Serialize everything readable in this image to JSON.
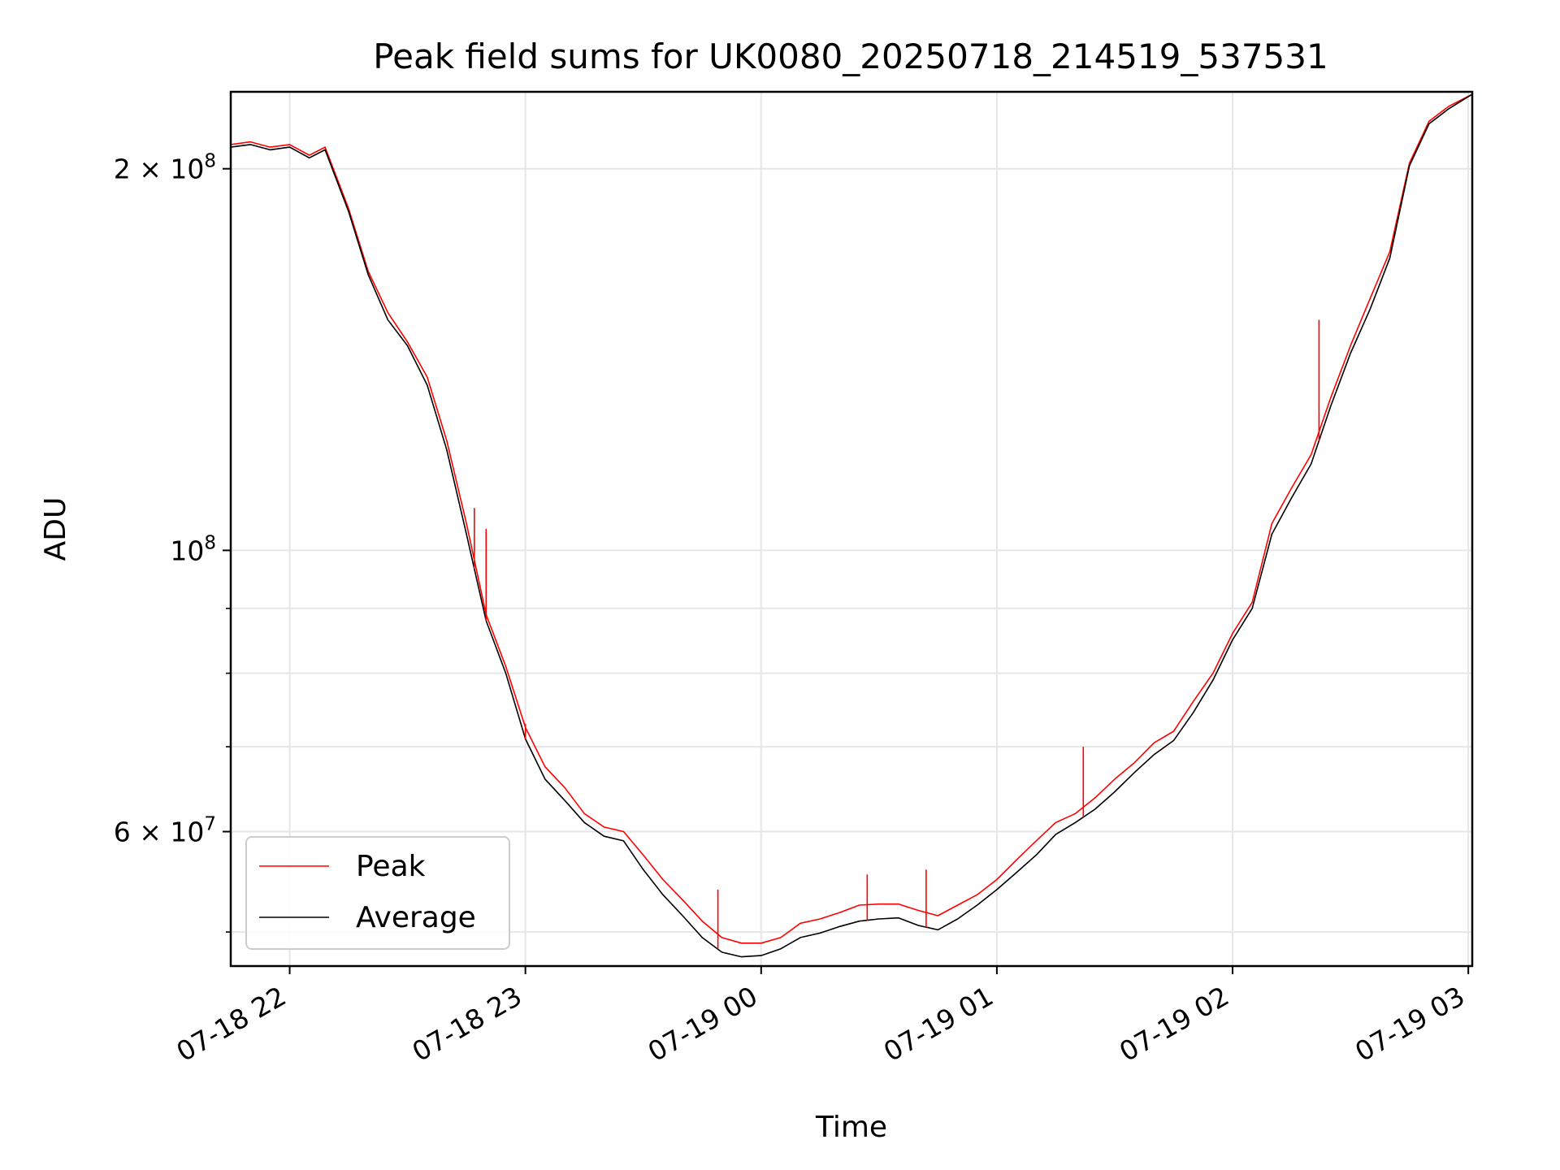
{
  "chart_data": {
    "type": "line",
    "title": "Peak field sums for UK0080_20250718_214519_537531",
    "xlabel": "Time",
    "ylabel": "ADU",
    "yscale": "log",
    "xlim": [
      "2025-07-18 21:45",
      "2025-07-19 03:01"
    ],
    "ylim": [
      47000000,
      230000000
    ],
    "grid": true,
    "legend_position": "lower-left",
    "x_ticks": [
      {
        "time": "2025-07-18 22:00",
        "label": "07-18 22"
      },
      {
        "time": "2025-07-18 23:00",
        "label": "07-18 23"
      },
      {
        "time": "2025-07-19 00:00",
        "label": "07-19 00"
      },
      {
        "time": "2025-07-19 01:00",
        "label": "07-19 01"
      },
      {
        "time": "2025-07-19 02:00",
        "label": "07-19 02"
      },
      {
        "time": "2025-07-19 03:00",
        "label": "07-19 03"
      }
    ],
    "y_ticks": [
      {
        "value": 200000000,
        "label_main": "2 × 10",
        "label_exp": "8"
      },
      {
        "value": 100000000,
        "label_main": "10",
        "label_exp": "8"
      },
      {
        "value": 60000000,
        "label_main": "6 × 10",
        "label_exp": "7"
      }
    ],
    "y_minor_ticks": [
      50000000,
      70000000,
      80000000,
      90000000
    ],
    "series": [
      {
        "name": "Average",
        "color": "#000000",
        "x": [
          "2025-07-18 21:45",
          "2025-07-18 21:50",
          "2025-07-18 21:55",
          "2025-07-18 22:00",
          "2025-07-18 22:05",
          "2025-07-18 22:09",
          "2025-07-18 22:15",
          "2025-07-18 22:20",
          "2025-07-18 22:25",
          "2025-07-18 22:30",
          "2025-07-18 22:35",
          "2025-07-18 22:40",
          "2025-07-18 22:45",
          "2025-07-18 22:50",
          "2025-07-18 22:55",
          "2025-07-18 23:00",
          "2025-07-18 23:05",
          "2025-07-18 23:10",
          "2025-07-18 23:15",
          "2025-07-18 23:20",
          "2025-07-18 23:25",
          "2025-07-18 23:30",
          "2025-07-18 23:35",
          "2025-07-18 23:40",
          "2025-07-18 23:45",
          "2025-07-18 23:50",
          "2025-07-18 23:55",
          "2025-07-19 00:00",
          "2025-07-19 00:05",
          "2025-07-19 00:10",
          "2025-07-19 00:15",
          "2025-07-19 00:20",
          "2025-07-19 00:25",
          "2025-07-19 00:30",
          "2025-07-19 00:35",
          "2025-07-19 00:40",
          "2025-07-19 00:45",
          "2025-07-19 00:50",
          "2025-07-19 00:55",
          "2025-07-19 01:00",
          "2025-07-19 01:05",
          "2025-07-19 01:10",
          "2025-07-19 01:15",
          "2025-07-19 01:20",
          "2025-07-19 01:25",
          "2025-07-19 01:30",
          "2025-07-19 01:35",
          "2025-07-19 01:40",
          "2025-07-19 01:45",
          "2025-07-19 01:50",
          "2025-07-19 01:55",
          "2025-07-19 02:00",
          "2025-07-19 02:05",
          "2025-07-19 02:10",
          "2025-07-19 02:15",
          "2025-07-19 02:20",
          "2025-07-19 02:25",
          "2025-07-19 02:30",
          "2025-07-19 02:35",
          "2025-07-19 02:40",
          "2025-07-19 02:45",
          "2025-07-19 02:50",
          "2025-07-19 02:55",
          "2025-07-19 03:01"
        ],
        "y": [
          208000000,
          209000000,
          207000000,
          208000000,
          204000000,
          207000000,
          185000000,
          165000000,
          152000000,
          145000000,
          135000000,
          120000000,
          103000000,
          88000000,
          80000000,
          71000000,
          66000000,
          63500000,
          61000000,
          59500000,
          59000000,
          56000000,
          53500000,
          51500000,
          49500000,
          48200000,
          47800000,
          47900000,
          48500000,
          49500000,
          49900000,
          50500000,
          51000000,
          51200000,
          51300000,
          50600000,
          50200000,
          51200000,
          52500000,
          54000000,
          55700000,
          57500000,
          59700000,
          61000000,
          62500000,
          64500000,
          66800000,
          69000000,
          70800000,
          74500000,
          79000000,
          85000000,
          90000000,
          103000000,
          110000000,
          117000000,
          130000000,
          143000000,
          155000000,
          170000000,
          201000000,
          217000000,
          223000000,
          229000000
        ]
      },
      {
        "name": "Peak",
        "color": "#ff0000",
        "x": [
          "2025-07-18 21:45",
          "2025-07-18 21:50",
          "2025-07-18 21:55",
          "2025-07-18 22:00",
          "2025-07-18 22:05",
          "2025-07-18 22:09",
          "2025-07-18 22:15",
          "2025-07-18 22:20",
          "2025-07-18 22:25",
          "2025-07-18 22:30",
          "2025-07-18 22:35",
          "2025-07-18 22:40",
          "2025-07-18 22:45",
          "2025-07-18 22:50",
          "2025-07-18 22:55",
          "2025-07-18 23:00",
          "2025-07-18 23:05",
          "2025-07-18 23:10",
          "2025-07-18 23:15",
          "2025-07-18 23:20",
          "2025-07-18 23:25",
          "2025-07-18 23:30",
          "2025-07-18 23:35",
          "2025-07-18 23:40",
          "2025-07-18 23:45",
          "2025-07-18 23:50",
          "2025-07-18 23:55",
          "2025-07-19 00:00",
          "2025-07-19 00:05",
          "2025-07-19 00:10",
          "2025-07-19 00:15",
          "2025-07-19 00:20",
          "2025-07-19 00:25",
          "2025-07-19 00:30",
          "2025-07-19 00:35",
          "2025-07-19 00:40",
          "2025-07-19 00:45",
          "2025-07-19 00:50",
          "2025-07-19 00:55",
          "2025-07-19 01:00",
          "2025-07-19 01:05",
          "2025-07-19 01:10",
          "2025-07-19 01:15",
          "2025-07-19 01:20",
          "2025-07-19 01:25",
          "2025-07-19 01:30",
          "2025-07-19 01:35",
          "2025-07-19 01:40",
          "2025-07-19 01:45",
          "2025-07-19 01:50",
          "2025-07-19 01:55",
          "2025-07-19 02:00",
          "2025-07-19 02:05",
          "2025-07-19 02:10",
          "2025-07-19 02:15",
          "2025-07-19 02:20",
          "2025-07-19 02:25",
          "2025-07-19 02:30",
          "2025-07-19 02:35",
          "2025-07-19 02:40",
          "2025-07-19 02:45",
          "2025-07-19 02:50",
          "2025-07-19 02:55",
          "2025-07-19 03:01"
        ],
        "y": [
          209000000,
          210000000,
          208000000,
          209000000,
          205000000,
          208000000,
          186000000,
          166000000,
          154000000,
          146000000,
          137000000,
          122000000,
          105000000,
          89000000,
          81000000,
          72500000,
          67500000,
          65000000,
          62000000,
          60500000,
          60000000,
          57500000,
          55000000,
          53000000,
          51000000,
          49500000,
          49000000,
          49000000,
          49500000,
          50800000,
          51200000,
          51800000,
          52500000,
          52600000,
          52600000,
          52000000,
          51500000,
          52500000,
          53500000,
          55000000,
          57000000,
          59000000,
          61000000,
          62000000,
          63800000,
          66000000,
          68000000,
          70500000,
          72000000,
          76000000,
          80000000,
          86000000,
          91000000,
          105000000,
          112000000,
          119000000,
          132000000,
          145000000,
          158000000,
          172000000,
          202000000,
          218000000,
          224000000,
          229000000
        ]
      }
    ],
    "spikes": [
      {
        "time": "2025-07-18 23:00",
        "value": 73000000
      },
      {
        "time": "2025-07-18 22:50",
        "value": 104000000
      },
      {
        "time": "2025-07-18 22:47",
        "value": 108000000
      },
      {
        "time": "2025-07-18 23:49",
        "value": 54000000
      },
      {
        "time": "2025-07-19 00:27",
        "value": 55500000
      },
      {
        "time": "2025-07-19 00:42",
        "value": 56000000
      },
      {
        "time": "2025-07-19 01:22",
        "value": 70000000
      },
      {
        "time": "2025-07-19 02:22",
        "value": 152000000
      }
    ]
  }
}
